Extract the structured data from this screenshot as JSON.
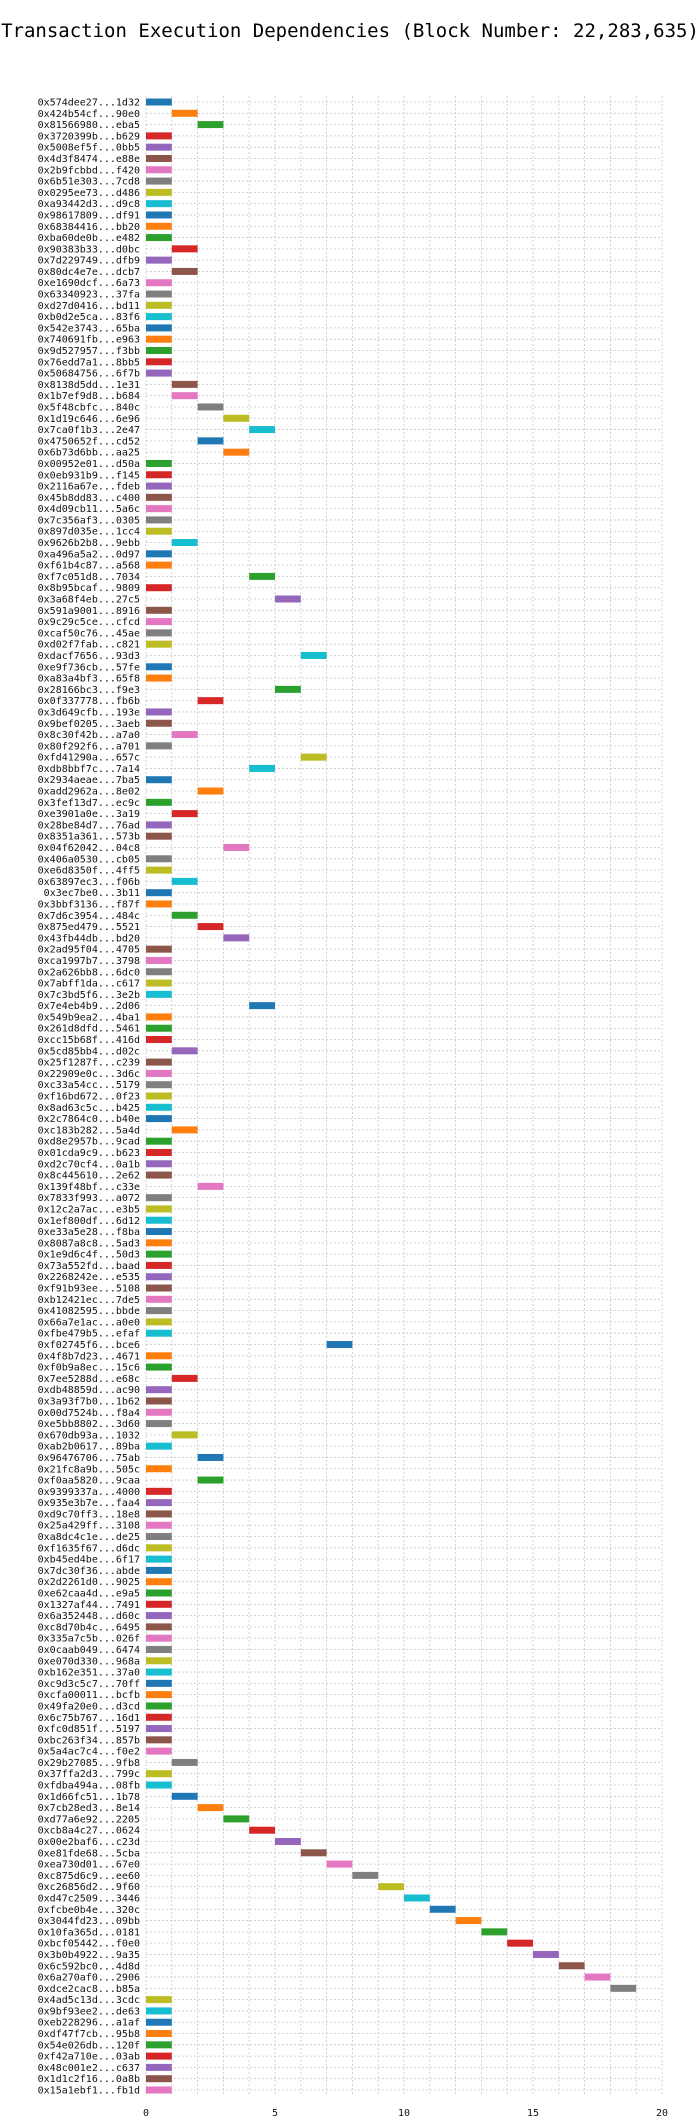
{
  "chart_data": {
    "type": "bar",
    "orientation": "horizontal-gantt",
    "title": "Transaction Execution Dependencies (Block Number: 22,283,635)",
    "xlabel": "",
    "ylabel": "",
    "xlim": [
      0,
      20
    ],
    "xticks": [
      0,
      5,
      10,
      15,
      20
    ],
    "grid": true,
    "palette": [
      "#1f77b4",
      "#ff7f0e",
      "#2ca02c",
      "#d62728",
      "#9467bd",
      "#8c564b",
      "#e377c2",
      "#7f7f7f",
      "#bcbd22",
      "#17becf"
    ],
    "transactions": [
      {
        "hash": "0x574dee27...1d32",
        "start": 0
      },
      {
        "hash": "0x424b54cf...90e0",
        "start": 1
      },
      {
        "hash": "0x81566980...eba5",
        "start": 2
      },
      {
        "hash": "0x3720399b...b629",
        "start": 0
      },
      {
        "hash": "0x5008ef5f...0bb5",
        "start": 0
      },
      {
        "hash": "0x4d3f8474...e88e",
        "start": 0
      },
      {
        "hash": "0x2b9fcbbd...f420",
        "start": 0
      },
      {
        "hash": "0x6b51e303...7cd8",
        "start": 0
      },
      {
        "hash": "0x0295ee73...d486",
        "start": 0
      },
      {
        "hash": "0xa93442d3...d9c8",
        "start": 0
      },
      {
        "hash": "0x98617809...df91",
        "start": 0
      },
      {
        "hash": "0x68384416...bb20",
        "start": 0
      },
      {
        "hash": "0xba60de0b...e482",
        "start": 0
      },
      {
        "hash": "0x90383b33...d0bc",
        "start": 1
      },
      {
        "hash": "0x7d229749...dfb9",
        "start": 0
      },
      {
        "hash": "0x80dc4e7e...dcb7",
        "start": 1
      },
      {
        "hash": "0xe1690dcf...6a73",
        "start": 0
      },
      {
        "hash": "0x63340923...37fa",
        "start": 0
      },
      {
        "hash": "0xd27d0416...bd11",
        "start": 0
      },
      {
        "hash": "0xb0d2e5ca...83f6",
        "start": 0
      },
      {
        "hash": "0x542e3743...65ba",
        "start": 0
      },
      {
        "hash": "0x740691fb...e963",
        "start": 0
      },
      {
        "hash": "0x9d527957...f3bb",
        "start": 0
      },
      {
        "hash": "0x76edd7a1...8bb5",
        "start": 0
      },
      {
        "hash": "0x50684756...6f7b",
        "start": 0
      },
      {
        "hash": "0x8138d5dd...1e31",
        "start": 1
      },
      {
        "hash": "0x1b7ef9d8...b684",
        "start": 1
      },
      {
        "hash": "0x5f48cbfc...840c",
        "start": 2
      },
      {
        "hash": "0x1d19c646...6e96",
        "start": 3
      },
      {
        "hash": "0x7ca0f1b3...2e47",
        "start": 4
      },
      {
        "hash": "0x4750652f...cd52",
        "start": 2
      },
      {
        "hash": "0x6b73d6bb...aa25",
        "start": 3
      },
      {
        "hash": "0x00952e01...d50a",
        "start": 0
      },
      {
        "hash": "0x0eb931b9...f145",
        "start": 0
      },
      {
        "hash": "0x2116a67e...fdeb",
        "start": 0
      },
      {
        "hash": "0x45b8dd83...c400",
        "start": 0
      },
      {
        "hash": "0x4d09cb11...5a6c",
        "start": 0
      },
      {
        "hash": "0x7c356af3...0305",
        "start": 0
      },
      {
        "hash": "0x897d035e...1cc4",
        "start": 0
      },
      {
        "hash": "0x9626b2b8...9ebb",
        "start": 1
      },
      {
        "hash": "0xa496a5a2...0d97",
        "start": 0
      },
      {
        "hash": "0xf61b4c87...a568",
        "start": 0
      },
      {
        "hash": "0xf7c051d8...7034",
        "start": 4
      },
      {
        "hash": "0x8b95bcaf...9809",
        "start": 0
      },
      {
        "hash": "0x3a68f4eb...27c5",
        "start": 5
      },
      {
        "hash": "0x591a9001...8916",
        "start": 0
      },
      {
        "hash": "0x9c29c5ce...cfcd",
        "start": 0
      },
      {
        "hash": "0xcaf50c76...45ae",
        "start": 0
      },
      {
        "hash": "0xd02f7fab...c821",
        "start": 0
      },
      {
        "hash": "0xdacf7656...93d3",
        "start": 6
      },
      {
        "hash": "0xe9f736cb...57fe",
        "start": 0
      },
      {
        "hash": "0xa83a4bf3...65f8",
        "start": 0
      },
      {
        "hash": "0x28166bc3...f9e3",
        "start": 5
      },
      {
        "hash": "0x0f337778...fb6b",
        "start": 2
      },
      {
        "hash": "0x3d649cfb...193e",
        "start": 0
      },
      {
        "hash": "0x9bef0205...3aeb",
        "start": 0
      },
      {
        "hash": "0x8c30f42b...a7a0",
        "start": 1
      },
      {
        "hash": "0x80f292f6...a701",
        "start": 0
      },
      {
        "hash": "0xfd41290a...657c",
        "start": 6
      },
      {
        "hash": "0xdb8bbf7c...7a14",
        "start": 4
      },
      {
        "hash": "0x2934aeae...7ba5",
        "start": 0
      },
      {
        "hash": "0xadd2962a...8e02",
        "start": 2
      },
      {
        "hash": "0x3fef13d7...ec9c",
        "start": 0
      },
      {
        "hash": "0xe3901a0e...3a19",
        "start": 1
      },
      {
        "hash": "0x28be84d7...76ad",
        "start": 0
      },
      {
        "hash": "0x8351a361...573b",
        "start": 0
      },
      {
        "hash": "0x04f62042...04c8",
        "start": 3
      },
      {
        "hash": "0x406a0530...cb05",
        "start": 0
      },
      {
        "hash": "0xe6d8350f...4ff5",
        "start": 0
      },
      {
        "hash": "0x63897ec3...f06b",
        "start": 1
      },
      {
        "hash": "0x3ec7be0...3b11",
        "start": 0
      },
      {
        "hash": "0x3bbf3136...f87f",
        "start": 0
      },
      {
        "hash": "0x7d6c3954...484c",
        "start": 1
      },
      {
        "hash": "0x875ed479...5521",
        "start": 2
      },
      {
        "hash": "0x43fb44db...bd20",
        "start": 3
      },
      {
        "hash": "0x2ad95f04...4705",
        "start": 0
      },
      {
        "hash": "0xca1997b7...3798",
        "start": 0
      },
      {
        "hash": "0x2a626bb8...6dc0",
        "start": 0
      },
      {
        "hash": "0x7abff1da...c617",
        "start": 0
      },
      {
        "hash": "0x7c3bd5f6...3e2b",
        "start": 0
      },
      {
        "hash": "0x7e4eb4b9...2d06",
        "start": 4
      },
      {
        "hash": "0x549b9ea2...4ba1",
        "start": 0
      },
      {
        "hash": "0x261d8dfd...5461",
        "start": 0
      },
      {
        "hash": "0xcc15b68f...416d",
        "start": 0
      },
      {
        "hash": "0x5cd85bb4...d02c",
        "start": 1
      },
      {
        "hash": "0x25f1287f...c239",
        "start": 0
      },
      {
        "hash": "0x22909e0c...3d6c",
        "start": 0
      },
      {
        "hash": "0xc33a54cc...5179",
        "start": 0
      },
      {
        "hash": "0xf16bd672...0f23",
        "start": 0
      },
      {
        "hash": "0x8ad63c5c...b425",
        "start": 0
      },
      {
        "hash": "0x2c7864c0...b40e",
        "start": 0
      },
      {
        "hash": "0xc183b282...5a4d",
        "start": 1
      },
      {
        "hash": "0xd8e2957b...9cad",
        "start": 0
      },
      {
        "hash": "0x01cda9c9...b623",
        "start": 0
      },
      {
        "hash": "0xd2c70cf4...0a1b",
        "start": 0
      },
      {
        "hash": "0x8c445610...2e62",
        "start": 0
      },
      {
        "hash": "0x139f48bf...c33e",
        "start": 2
      },
      {
        "hash": "0x7833f993...a072",
        "start": 0
      },
      {
        "hash": "0x12c2a7ac...e3b5",
        "start": 0
      },
      {
        "hash": "0x1ef800df...6d12",
        "start": 0
      },
      {
        "hash": "0xe33a5e28...f8ba",
        "start": 0
      },
      {
        "hash": "0x8087a8c8...5ad3",
        "start": 0
      },
      {
        "hash": "0x1e9d6c4f...50d3",
        "start": 0
      },
      {
        "hash": "0x73a552fd...baad",
        "start": 0
      },
      {
        "hash": "0x2268242e...e535",
        "start": 0
      },
      {
        "hash": "0xf91b93ee...5108",
        "start": 0
      },
      {
        "hash": "0xb12421ec...7de5",
        "start": 0
      },
      {
        "hash": "0x41082595...bbde",
        "start": 0
      },
      {
        "hash": "0x66a7e1ac...a0e0",
        "start": 0
      },
      {
        "hash": "0xfbe479b5...efaf",
        "start": 0
      },
      {
        "hash": "0xf02745f6...bce6",
        "start": 7
      },
      {
        "hash": "0x4f8b7d23...4671",
        "start": 0
      },
      {
        "hash": "0xf0b9a8ec...15c6",
        "start": 0
      },
      {
        "hash": "0x7ee5288d...e68c",
        "start": 1
      },
      {
        "hash": "0xdb48859d...ac90",
        "start": 0
      },
      {
        "hash": "0x3a93f7b0...1b62",
        "start": 0
      },
      {
        "hash": "0x00d7524b...f8a4",
        "start": 0
      },
      {
        "hash": "0xe5bb8802...3d60",
        "start": 0
      },
      {
        "hash": "0x670db93a...1032",
        "start": 1
      },
      {
        "hash": "0xab2b0617...89ba",
        "start": 0
      },
      {
        "hash": "0x96476706...75ab",
        "start": 2
      },
      {
        "hash": "0x21fc8a9b...505c",
        "start": 0
      },
      {
        "hash": "0xf0aa5820...9caa",
        "start": 2
      },
      {
        "hash": "0x9399337a...4000",
        "start": 0
      },
      {
        "hash": "0x935e3b7e...faa4",
        "start": 0
      },
      {
        "hash": "0xd9c70ff3...18e8",
        "start": 0
      },
      {
        "hash": "0x25a429ff...3108",
        "start": 0
      },
      {
        "hash": "0xa8dc4c1e...de25",
        "start": 0
      },
      {
        "hash": "0xf1635f67...d6dc",
        "start": 0
      },
      {
        "hash": "0xb45ed4be...6f17",
        "start": 0
      },
      {
        "hash": "0x7dc30f36...abde",
        "start": 0
      },
      {
        "hash": "0x2d2261d0...9025",
        "start": 0
      },
      {
        "hash": "0xe62caa4d...e9a5",
        "start": 0
      },
      {
        "hash": "0x1327af44...7491",
        "start": 0
      },
      {
        "hash": "0x6a352448...d60c",
        "start": 0
      },
      {
        "hash": "0xc8d70b4c...6495",
        "start": 0
      },
      {
        "hash": "0x335a7c5b...026f",
        "start": 0
      },
      {
        "hash": "0x0caab049...6474",
        "start": 0
      },
      {
        "hash": "0xe070d330...968a",
        "start": 0
      },
      {
        "hash": "0xb162e351...37a0",
        "start": 0
      },
      {
        "hash": "0xc9d3c5c7...70ff",
        "start": 0
      },
      {
        "hash": "0xcfa00011...bcfb",
        "start": 0
      },
      {
        "hash": "0x49fa20e0...d3cd",
        "start": 0
      },
      {
        "hash": "0x6c75b767...16d1",
        "start": 0
      },
      {
        "hash": "0xfc0d851f...5197",
        "start": 0
      },
      {
        "hash": "0xbc263f34...857b",
        "start": 0
      },
      {
        "hash": "0x5a4ac7c4...f0e2",
        "start": 0
      },
      {
        "hash": "0x29b27085...9fb8",
        "start": 1
      },
      {
        "hash": "0x37ffa2d3...799c",
        "start": 0
      },
      {
        "hash": "0xfdba494a...08fb",
        "start": 0
      },
      {
        "hash": "0x1d66fc51...1b78",
        "start": 1
      },
      {
        "hash": "0x7cb28ed3...8e14",
        "start": 2
      },
      {
        "hash": "0xd77a6e92...2205",
        "start": 3
      },
      {
        "hash": "0xcb8a4c27...0624",
        "start": 4
      },
      {
        "hash": "0x00e2baf6...c23d",
        "start": 5
      },
      {
        "hash": "0xe81fde68...5cba",
        "start": 6
      },
      {
        "hash": "0xea730d01...67e0",
        "start": 7
      },
      {
        "hash": "0xc875d6c9...ee60",
        "start": 8
      },
      {
        "hash": "0xc26856d2...9f60",
        "start": 9
      },
      {
        "hash": "0xd47c2509...3446",
        "start": 10
      },
      {
        "hash": "0xfcbe0b4e...320c",
        "start": 11
      },
      {
        "hash": "0x3044fd23...09bb",
        "start": 12
      },
      {
        "hash": "0x10fa365d...0181",
        "start": 13
      },
      {
        "hash": "0xbcf05442...f0e0",
        "start": 14
      },
      {
        "hash": "0x3b0b4922...9a35",
        "start": 15
      },
      {
        "hash": "0x6c592bc0...4d8d",
        "start": 16
      },
      {
        "hash": "0x6a270af0...2906",
        "start": 17
      },
      {
        "hash": "0xdce2cac8...b85a",
        "start": 18
      },
      {
        "hash": "0x4ad5c13d...3cdc",
        "start": 0
      },
      {
        "hash": "0x9bf93ee2...de63",
        "start": 0
      },
      {
        "hash": "0xeb228296...a1af",
        "start": 0
      },
      {
        "hash": "0xdf47f7cb...95b8",
        "start": 0
      },
      {
        "hash": "0x54e026db...120f",
        "start": 0
      },
      {
        "hash": "0xf42a710e...03ab",
        "start": 0
      },
      {
        "hash": "0x48c001e2...c637",
        "start": 0
      },
      {
        "hash": "0x1d1c2f16...0a8b",
        "start": 0
      },
      {
        "hash": "0x15a1ebf1...fb1d",
        "start": 0
      }
    ]
  }
}
